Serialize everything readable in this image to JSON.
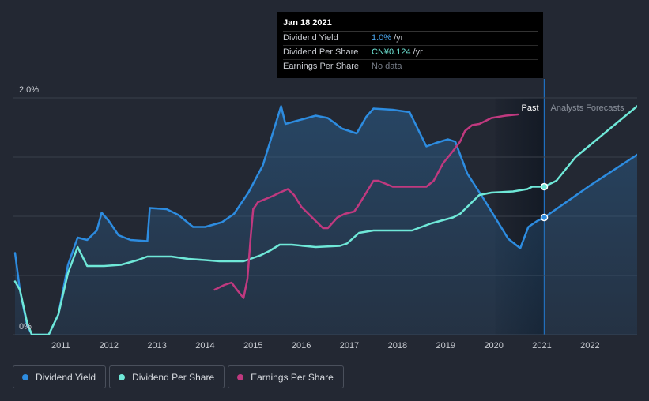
{
  "chart_data": {
    "type": "line",
    "x_unit": "year",
    "xlim": [
      2010.0,
      2022.98
    ],
    "ylim": [
      0,
      2.0
    ],
    "y_tick_labels": [
      {
        "value": 0,
        "label": "0%"
      },
      {
        "value": 2.0,
        "label": "2.0%"
      }
    ],
    "x_ticks": [
      {
        "value": 2011,
        "label": "2011"
      },
      {
        "value": 2012,
        "label": "2012"
      },
      {
        "value": 2013,
        "label": "2013"
      },
      {
        "value": 2014,
        "label": "2014"
      },
      {
        "value": 2015,
        "label": "2015"
      },
      {
        "value": 2016,
        "label": "2016"
      },
      {
        "value": 2017,
        "label": "2017"
      },
      {
        "value": 2018,
        "label": "2018"
      },
      {
        "value": 2019,
        "label": "2019"
      },
      {
        "value": 2020,
        "label": "2020"
      },
      {
        "value": 2021,
        "label": "2021"
      },
      {
        "value": 2022,
        "label": "2022"
      }
    ],
    "grid_values": [
      0.5,
      1.0,
      1.5,
      2.0
    ],
    "past_label": "Past",
    "forecast_label": "Analysts Forecasts",
    "present_x": 2021.05,
    "forecast_shade_start": 2020.03,
    "series": [
      {
        "name": "Dividend Yield",
        "color": "#2d8ce0",
        "filled": true,
        "points": [
          [
            2010.05,
            0.69
          ],
          [
            2010.15,
            0.38
          ],
          [
            2010.3,
            0.08
          ],
          [
            2010.4,
            0.0
          ],
          [
            2010.75,
            0.0
          ],
          [
            2010.95,
            0.17
          ],
          [
            2011.15,
            0.59
          ],
          [
            2011.35,
            0.82
          ],
          [
            2011.55,
            0.8
          ],
          [
            2011.75,
            0.88
          ],
          [
            2011.85,
            1.03
          ],
          [
            2012.0,
            0.96
          ],
          [
            2012.2,
            0.84
          ],
          [
            2012.45,
            0.8
          ],
          [
            2012.8,
            0.79
          ],
          [
            2012.85,
            1.07
          ],
          [
            2013.2,
            1.06
          ],
          [
            2013.45,
            1.01
          ],
          [
            2013.75,
            0.91
          ],
          [
            2014.0,
            0.91
          ],
          [
            2014.35,
            0.95
          ],
          [
            2014.6,
            1.02
          ],
          [
            2014.9,
            1.2
          ],
          [
            2015.2,
            1.43
          ],
          [
            2015.42,
            1.72
          ],
          [
            2015.58,
            1.93
          ],
          [
            2015.67,
            1.78
          ],
          [
            2015.85,
            1.8
          ],
          [
            2016.3,
            1.85
          ],
          [
            2016.55,
            1.83
          ],
          [
            2016.85,
            1.74
          ],
          [
            2017.15,
            1.7
          ],
          [
            2017.35,
            1.84
          ],
          [
            2017.5,
            1.91
          ],
          [
            2017.9,
            1.9
          ],
          [
            2018.25,
            1.88
          ],
          [
            2018.6,
            1.59
          ],
          [
            2018.8,
            1.62
          ],
          [
            2019.05,
            1.65
          ],
          [
            2019.2,
            1.63
          ],
          [
            2019.45,
            1.36
          ],
          [
            2019.8,
            1.14
          ],
          [
            2020.3,
            0.81
          ],
          [
            2020.55,
            0.73
          ],
          [
            2020.72,
            0.91
          ],
          [
            2020.9,
            0.96
          ],
          [
            2021.05,
            0.99
          ],
          [
            2022.0,
            1.26
          ],
          [
            2022.98,
            1.52
          ]
        ]
      },
      {
        "name": "Dividend Per Share",
        "color": "#6fe8d8",
        "filled": false,
        "points": [
          [
            2010.05,
            0.45
          ],
          [
            2010.15,
            0.38
          ],
          [
            2010.3,
            0.1
          ],
          [
            2010.4,
            0.0
          ],
          [
            2010.75,
            0.0
          ],
          [
            2010.95,
            0.17
          ],
          [
            2011.15,
            0.52
          ],
          [
            2011.35,
            0.74
          ],
          [
            2011.55,
            0.58
          ],
          [
            2011.9,
            0.58
          ],
          [
            2012.25,
            0.59
          ],
          [
            2012.6,
            0.63
          ],
          [
            2012.8,
            0.66
          ],
          [
            2013.3,
            0.66
          ],
          [
            2013.65,
            0.64
          ],
          [
            2014.0,
            0.63
          ],
          [
            2014.3,
            0.62
          ],
          [
            2014.8,
            0.62
          ],
          [
            2015.15,
            0.67
          ],
          [
            2015.35,
            0.71
          ],
          [
            2015.55,
            0.76
          ],
          [
            2015.8,
            0.76
          ],
          [
            2016.3,
            0.74
          ],
          [
            2016.8,
            0.75
          ],
          [
            2016.95,
            0.77
          ],
          [
            2017.2,
            0.86
          ],
          [
            2017.5,
            0.88
          ],
          [
            2017.8,
            0.88
          ],
          [
            2018.3,
            0.88
          ],
          [
            2018.7,
            0.94
          ],
          [
            2019.15,
            0.99
          ],
          [
            2019.3,
            1.02
          ],
          [
            2019.55,
            1.12
          ],
          [
            2019.7,
            1.18
          ],
          [
            2019.95,
            1.2
          ],
          [
            2020.4,
            1.21
          ],
          [
            2020.7,
            1.23
          ],
          [
            2020.8,
            1.25
          ],
          [
            2021.05,
            1.25
          ],
          [
            2021.3,
            1.3
          ],
          [
            2021.7,
            1.5
          ],
          [
            2022.98,
            1.93
          ]
        ]
      },
      {
        "name": "Earnings Per Share",
        "color": "#c0397f",
        "filled": false,
        "points": [
          [
            2014.2,
            0.38
          ],
          [
            2014.4,
            0.42
          ],
          [
            2014.55,
            0.44
          ],
          [
            2014.68,
            0.37
          ],
          [
            2014.8,
            0.31
          ],
          [
            2014.88,
            0.47
          ],
          [
            2014.95,
            0.84
          ],
          [
            2015.0,
            1.06
          ],
          [
            2015.1,
            1.12
          ],
          [
            2015.4,
            1.17
          ],
          [
            2015.55,
            1.2
          ],
          [
            2015.72,
            1.23
          ],
          [
            2015.85,
            1.18
          ],
          [
            2016.0,
            1.08
          ],
          [
            2016.2,
            1.0
          ],
          [
            2016.45,
            0.9
          ],
          [
            2016.55,
            0.9
          ],
          [
            2016.75,
            0.99
          ],
          [
            2016.9,
            1.02
          ],
          [
            2017.1,
            1.04
          ],
          [
            2017.2,
            1.1
          ],
          [
            2017.5,
            1.3
          ],
          [
            2017.6,
            1.3
          ],
          [
            2017.9,
            1.25
          ],
          [
            2018.0,
            1.25
          ],
          [
            2018.5,
            1.25
          ],
          [
            2018.6,
            1.25
          ],
          [
            2018.75,
            1.3
          ],
          [
            2018.95,
            1.45
          ],
          [
            2019.15,
            1.55
          ],
          [
            2019.3,
            1.63
          ],
          [
            2019.4,
            1.72
          ],
          [
            2019.55,
            1.77
          ],
          [
            2019.7,
            1.78
          ],
          [
            2019.95,
            1.83
          ],
          [
            2020.25,
            1.85
          ],
          [
            2020.5,
            1.86
          ]
        ]
      }
    ],
    "markers": [
      {
        "series": "Dividend Per Share",
        "x": 2021.05,
        "y": 1.25
      },
      {
        "series": "Dividend Yield",
        "x": 2021.05,
        "y": 0.99
      }
    ]
  },
  "tooltip": {
    "date": "Jan 18 2021",
    "rows": [
      {
        "label": "Dividend Yield",
        "value": "1.0%",
        "unit": "/yr"
      },
      {
        "label": "Dividend Per Share",
        "value": "CN¥0.124",
        "unit": "/yr"
      },
      {
        "label": "Earnings Per Share",
        "value": "No data"
      }
    ]
  },
  "legend": [
    {
      "label": "Dividend Yield",
      "color": "#2d8ce0"
    },
    {
      "label": "Dividend Per Share",
      "color": "#6fe8d8"
    },
    {
      "label": "Earnings Per Share",
      "color": "#c0397f"
    }
  ]
}
